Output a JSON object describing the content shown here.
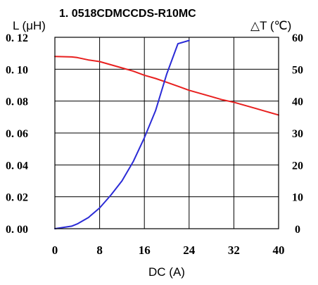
{
  "chart_data": {
    "type": "line",
    "title": "1. 0518CDMCCDS-R10MC",
    "xlabel": "DC (A)",
    "ylabel_left": "L (μH)",
    "ylabel_right": "△T (℃)",
    "x_ticks": [
      "0",
      "8",
      "16",
      "24",
      "32",
      "40"
    ],
    "y_left_ticks": [
      "0. 00",
      "0. 02",
      "0. 04",
      "0. 06",
      "0. 08",
      "0. 10",
      "0. 12"
    ],
    "y_right_ticks": [
      "0",
      "10",
      "20",
      "30",
      "40",
      "50",
      "60"
    ],
    "xlim": [
      0,
      40
    ],
    "ylim_left": [
      0,
      0.12
    ],
    "ylim_right": [
      0,
      60
    ],
    "grid": true,
    "colors": {
      "inductance": "#e8201f",
      "temperature": "#2b2bd6"
    },
    "series": [
      {
        "axis": "left",
        "x": [
          0,
          3,
          4,
          6,
          8,
          10,
          12,
          14,
          16,
          18,
          20,
          22,
          24,
          26,
          28,
          30,
          32,
          34,
          36,
          38,
          40
        ],
        "y": [
          0.108,
          0.1077,
          0.1073,
          0.1058,
          0.1048,
          0.1028,
          0.1008,
          0.0988,
          0.0962,
          0.0942,
          0.0918,
          0.0893,
          0.0868,
          0.0848,
          0.0828,
          0.0808,
          0.0793,
          0.0773,
          0.0753,
          0.0733,
          0.0713
        ]
      },
      {
        "axis": "right",
        "x": [
          0,
          3,
          4,
          6,
          8,
          10,
          12,
          14,
          16,
          18,
          20,
          22,
          24
        ],
        "y": [
          0,
          0.8,
          1.5,
          3.5,
          6.5,
          10.5,
          15,
          21,
          28.5,
          37,
          48.5,
          58,
          59
        ]
      }
    ]
  }
}
